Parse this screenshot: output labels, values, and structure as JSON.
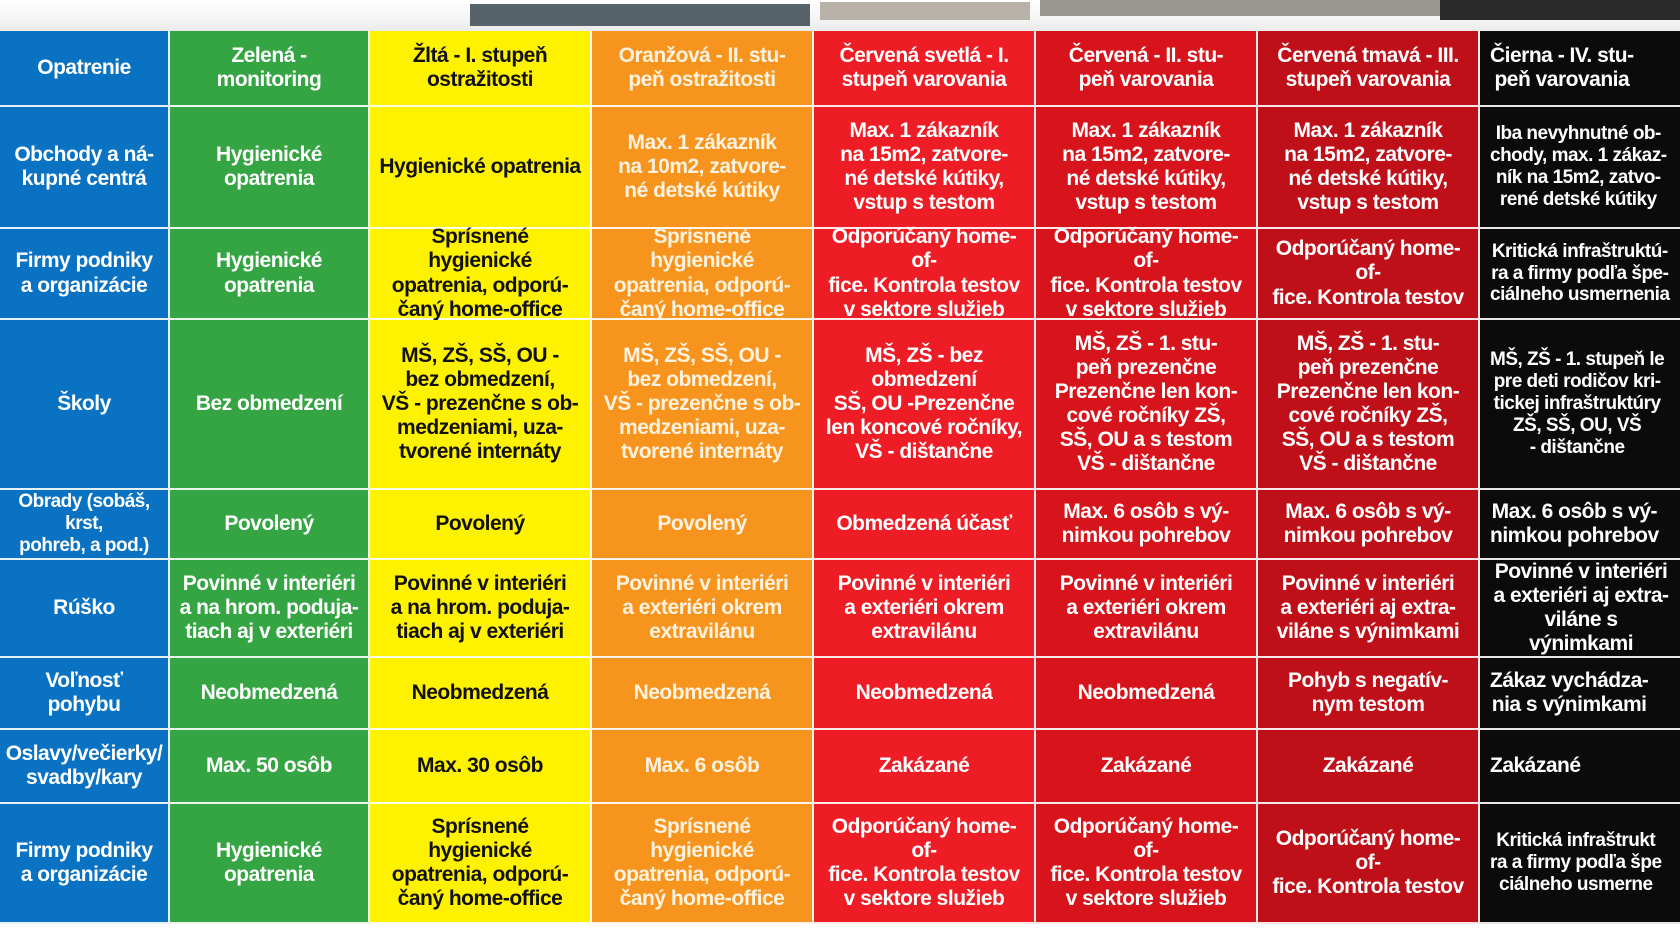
{
  "colors": {
    "label": "#0a72c3",
    "green": "#35a544",
    "yellow": "#fff200",
    "orange": "#f7941d",
    "red_light": "#ee1c24",
    "red": "#d7141b",
    "red_dark": "#bf1019",
    "black": "#0b0b0b"
  },
  "table": {
    "header": [
      "Opatrenie",
      "Zelená - monitoring",
      "Žltá - I. stupeň\nostražitosti",
      "Oranžová - II. stu-\npeň ostražitosti",
      "Červená svetlá - I.\nstupeň varovania",
      "Červená - II. stu-\npeň varovania",
      "Červená tmavá - III.\nstupeň varovania",
      "Čierna - IV. stu-\npeň varovania"
    ],
    "rows": [
      [
        "Obchody a ná-\nkupné centrá",
        "Hygienické\nopatrenia",
        "Hygienické opatrenia",
        "Max. 1 zákazník\nna 10m2, zatvore-\nné detské kútiky",
        "Max. 1 zákazník\nna 15m2, zatvore-\nné detské kútiky,\nvstup s testom",
        "Max. 1 zákazník\nna 15m2, zatvore-\nné detské kútiky,\nvstup s testom",
        "Max. 1 zákazník\nna 15m2, zatvore-\nné detské kútiky,\nvstup s testom",
        "Iba nevyhnutné ob-\nchody, max. 1 zákaz-\nník na 15m2, zatvo-\nrené detské kútiky"
      ],
      [
        "Firmy podniky\na organizácie",
        "Hygienické\nopatrenia",
        "Sprísnené hygienické\nopatrenia, odporú-\nčaný home-office",
        "Sprísnené hygienické\nopatrenia, odporú-\nčaný home-office",
        "Odporúčaný home-of-\nfice. Kontrola testov\nv sektore služieb",
        "Odporúčaný home-of-\nfice. Kontrola testov\nv sektore služieb",
        "Odporúčaný home-of-\nfice. Kontrola testov",
        "Kritická infraštruktú-\nra a firmy podľa špe-\nciálneho usmernenia"
      ],
      [
        "Školy",
        "Bez obmedzení",
        "MŠ, ZŠ, SŠ, OU -\nbez obmedzení,\nVŠ - prezenčne s ob-\nmedzeniami, uza-\ntvorené internáty",
        "MŠ, ZŠ, SŠ, OU -\nbez obmedzení,\nVŠ - prezenčne s ob-\nmedzeniami, uza-\ntvorené internáty",
        "MŠ, ZŠ - bez\nobmedzení\nSŠ, OU -Prezenčne\nlen koncové ročníky,\nVŠ - dištančne",
        "MŠ, ZŠ - 1. stu-\npeň prezenčne\nPrezenčne len kon-\ncové ročníky ZŠ,\nSŠ, OU a s testom\nVŠ - dištančne",
        "MŠ, ZŠ - 1. stu-\npeň prezenčne\nPrezenčne len kon-\ncové ročníky ZŠ,\nSŠ, OU a s testom\nVŠ - dištančne",
        "MŠ, ZŠ - 1. stupeň le\npre deti rodičov kri-\ntickej infraštruktúry\nZŠ, SŠ, OU, VŠ\n- dištančne"
      ],
      [
        "Obrady (sobáš, krst,\npohreb, a pod.)",
        "Povolený",
        "Povolený",
        "Povolený",
        "Obmedzená účasť",
        "Max. 6 osôb s vý-\nnimkou pohrebov",
        "Max. 6 osôb s vý-\nnimkou pohrebov",
        "Max. 6 osôb s vý-\nnimkou pohrebov"
      ],
      [
        "Rúško",
        "Povinné v interiéri\na na hrom. poduja-\ntiach aj v exteriéri",
        "Povinné v interiéri\na na hrom. poduja-\ntiach aj v exteriéri",
        "Povinné v interiéri\na exteriéri okrem\nextravilánu",
        "Povinné v interiéri\na exteriéri okrem\nextravilánu",
        "Povinné v interiéri\na exteriéri okrem\nextravilánu",
        "Povinné v interiéri\na exteriéri aj extra-\nviláne s výnimkami",
        "Povinné v interiéri\na exteriéri aj extra-\nviláne s výnimkami"
      ],
      [
        "Voľnosť pohybu",
        "Neobmedzená",
        "Neobmedzená",
        "Neobmedzená",
        "Neobmedzená",
        "Neobmedzená",
        "Pohyb s negatív-\nnym testom",
        "Zákaz vychádza-\nnia s výnimkami"
      ],
      [
        "Oslavy/večierky/\nsvadby/kary",
        "Max. 50 osôb",
        "Max. 30 osôb",
        "Max. 6 osôb",
        "Zakázané",
        "Zakázané",
        "Zakázané",
        "Zakázané"
      ],
      [
        "Firmy podniky\na organizácie",
        "Hygienické\nopatrenia",
        "Sprísnené hygienické\nopatrenia, odporú-\nčaný home-office",
        "Sprísnené hygienické\nopatrenia, odporú-\nčaný home-office",
        "Odporúčaný home-of-\nfice. Kontrola testov\nv sektore služieb",
        "Odporúčaný home-of-\nfice. Kontrola testov\nv sektore služieb",
        "Odporúčaný home-of-\nfice. Kontrola testov",
        "Kritická infraštrukt\nra a firmy podľa špe\nciálneho usmerne"
      ]
    ]
  }
}
